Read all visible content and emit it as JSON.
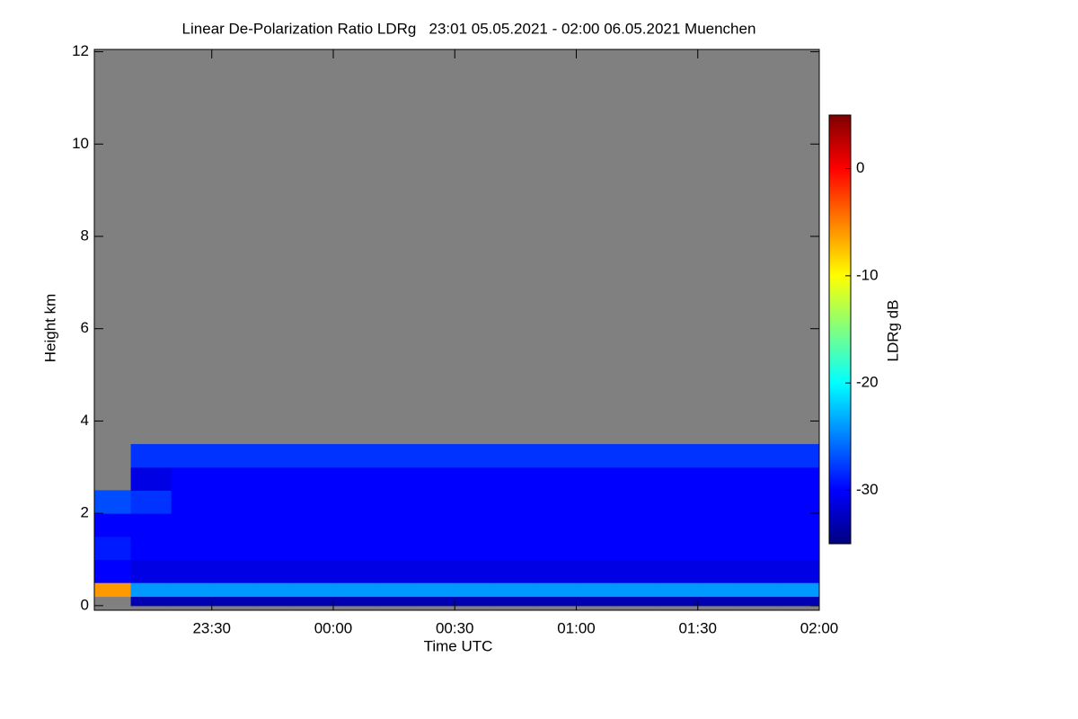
{
  "chart_data": {
    "type": "heatmap",
    "title": "Linear De-Polarization Ratio LDRg   23:01 05.05.2021 - 02:00 06.05.2021 Muenchen",
    "x_label": "Time UTC",
    "y_label": "Height km",
    "colorbar_label": "LDRg dB",
    "x": [
      "23:01",
      "23:10",
      "23:20",
      "23:30",
      "23:40",
      "23:50",
      "00:00",
      "00:10",
      "00:20",
      "00:30",
      "00:40",
      "00:50",
      "01:00",
      "01:10",
      "01:20",
      "01:30",
      "01:40",
      "01:50",
      "02:00"
    ],
    "y": [
      0,
      0.2,
      0.5,
      1,
      1.5,
      2,
      2.5,
      3,
      3.5
    ],
    "values": [
      [
        null,
        -33,
        -33,
        -33,
        -33,
        -33,
        -33,
        -33,
        -33,
        -33,
        -33,
        -33,
        -33,
        -33,
        -33,
        -33,
        -33,
        -33
      ],
      [
        -6,
        -24,
        -24,
        -24,
        -24,
        -24,
        -24,
        -24,
        -24,
        -24,
        -24,
        -24,
        -24,
        -24,
        -24,
        -24,
        -24,
        -24
      ],
      [
        -30,
        -31,
        -31,
        -31,
        -31,
        -31,
        -31,
        -31,
        -31,
        -31,
        -31,
        -31,
        -31,
        -31,
        -31,
        -31,
        -31,
        -31
      ],
      [
        -29,
        -30,
        -30,
        -30,
        -30,
        -30,
        -30,
        -30,
        -30,
        -30,
        -30,
        -30,
        -30,
        -30,
        -30,
        -30,
        -30,
        -30
      ],
      [
        -30,
        -30,
        -30,
        -30,
        -30,
        -30,
        -30,
        -30,
        -30,
        -30,
        -30,
        -30,
        -30,
        -30,
        -30,
        -30,
        -30,
        -30
      ],
      [
        -27,
        -28,
        -30,
        -30,
        -30,
        -30,
        -30,
        -30,
        -30,
        -30,
        -30,
        -30,
        -30,
        -30,
        -30,
        -30,
        -30,
        -30
      ],
      [
        null,
        -31,
        -30,
        -30,
        -30,
        -30,
        -30,
        -30,
        -30,
        -30,
        -30,
        -30,
        -30,
        -30,
        -30,
        -30,
        -30,
        -30
      ],
      [
        null,
        -28,
        -28,
        -28,
        -28,
        -28,
        -28,
        -28,
        -28,
        -28,
        -28,
        -28,
        -28,
        -28,
        -28,
        -28,
        -28,
        -28
      ]
    ],
    "xlim": [
      "23:01",
      "02:00"
    ],
    "xticks": [
      "23:30",
      "00:00",
      "00:30",
      "01:00",
      "01:30",
      "02:00"
    ],
    "ylim": [
      -0.1,
      12.05
    ],
    "yticks": [
      0,
      2,
      4,
      6,
      8,
      10,
      12
    ],
    "clim": [
      -35,
      5
    ],
    "cticks": [
      0,
      -10,
      -20,
      -30
    ],
    "colormap": [
      "#00007f",
      "#0000ff",
      "#0080ff",
      "#00ffff",
      "#80ff80",
      "#ffff00",
      "#ff8000",
      "#ff0000",
      "#7f0000"
    ],
    "missing_color": "#808080"
  }
}
